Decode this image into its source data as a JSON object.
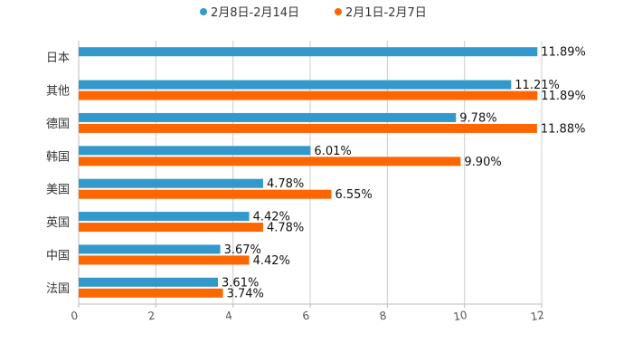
{
  "colors": {
    "series_a": "#3399cc",
    "series_b": "#ff6600"
  },
  "chart_data": {
    "type": "bar",
    "orientation": "horizontal",
    "title": "",
    "xlabel": "",
    "ylabel": "",
    "xlim": [
      0,
      12
    ],
    "x_ticks": [
      "0",
      "2",
      "4",
      "6",
      "8",
      "10",
      "12"
    ],
    "grid": true,
    "legend_position": "top",
    "categories": [
      "日本",
      "其他",
      "德国",
      "韩国",
      "美国",
      "英国",
      "中国",
      "法国"
    ],
    "series": [
      {
        "name": "2月8日-2月14日",
        "color": "#3399cc",
        "values": [
          11.89,
          11.21,
          9.78,
          6.01,
          4.78,
          4.42,
          3.67,
          3.61
        ],
        "labels": [
          "11.89%",
          "11.21%",
          "9.78%",
          "6.01%",
          "4.78%",
          "4.42%",
          "3.67%",
          "3.61%"
        ]
      },
      {
        "name": "2月1日-2月7日",
        "color": "#ff6600",
        "values": [
          null,
          11.89,
          11.88,
          9.9,
          6.55,
          4.78,
          4.42,
          3.74
        ],
        "labels": [
          "",
          "11.89%",
          "11.88%",
          "9.90%",
          "6.55%",
          "4.78%",
          "4.42%",
          "3.74%"
        ]
      }
    ]
  }
}
